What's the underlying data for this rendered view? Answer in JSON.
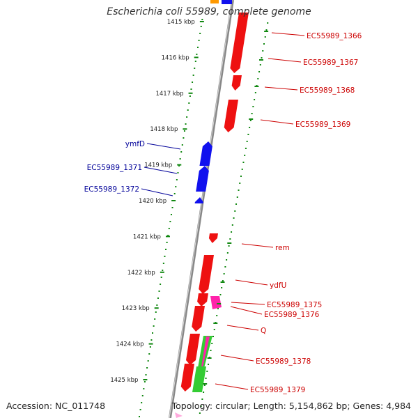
{
  "title": "Escherichia coli 55989, complete genome",
  "footer": {
    "accession": "Accession: NC_011748",
    "summary": "Topology: circular; Length: 5,154,862 bp; Genes: 4,984"
  },
  "colors": {
    "forward_gene": "#ee1111",
    "reverse_gene": "#1111ee",
    "rrna_gene": "#ff22aa",
    "other_gene": "#33cc33",
    "top_partial": "#ff9900",
    "ruler": "#118811",
    "backbone": "#888888",
    "forward_label": "#cc0000",
    "reverse_label": "#000099"
  },
  "ruler_ticks": [
    {
      "label": "1415 kbp",
      "pos": 1415
    },
    {
      "label": "1416 kbp",
      "pos": 1416
    },
    {
      "label": "1417 kbp",
      "pos": 1417
    },
    {
      "label": "1418 kbp",
      "pos": 1418
    },
    {
      "label": "1419 kbp",
      "pos": 1419
    },
    {
      "label": "1420 kbp",
      "pos": 1420
    },
    {
      "label": "1421 kbp",
      "pos": 1421
    },
    {
      "label": "1422 kbp",
      "pos": 1422
    },
    {
      "label": "1423 kbp",
      "pos": 1423
    },
    {
      "label": "1424 kbp",
      "pos": 1424
    },
    {
      "label": "1425 kbp",
      "pos": 1425
    }
  ],
  "forward_labels": [
    "EC55989_1366",
    "EC55989_1367",
    "EC55989_1368",
    "EC55989_1369",
    "rem",
    "ydfU",
    "EC55989_1375",
    "EC55989_1376",
    "Q",
    "EC55989_1378",
    "EC55989_1379"
  ],
  "reverse_labels": [
    "ymfD",
    "EC55989_1371",
    "EC55989_1372"
  ]
}
